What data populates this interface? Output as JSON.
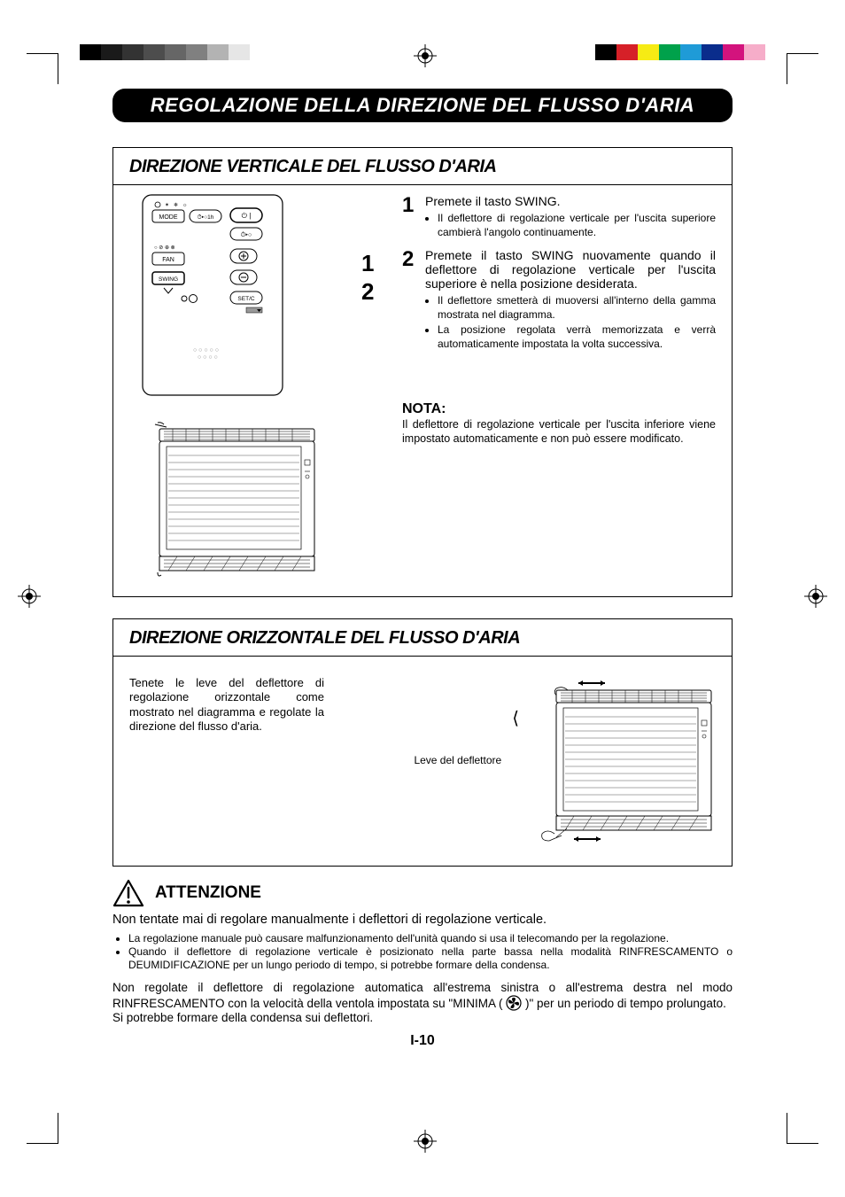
{
  "colorbars": {
    "left": [
      "#000000",
      "#1a1a1a",
      "#333333",
      "#4d4d4d",
      "#666666",
      "#808080",
      "#b3b3b3",
      "#e6e6e6",
      "#ffffff"
    ],
    "right": [
      "#000000",
      "#d62028",
      "#f6eb14",
      "#00a14b",
      "#1f9bd7",
      "#0a2d8c",
      "#d3137d",
      "#f6adc9"
    ]
  },
  "main_title": "REGOLAZIONE DELLA DIREZIONE DEL FLUSSO D'ARIA",
  "section1": {
    "title": "DIREZIONE VERTICALE DEL FLUSSO D'ARIA",
    "remote": {
      "mode_label": "MODE",
      "fan_label": "FAN",
      "swing_label": "SWING",
      "setc_label": "SET/C",
      "timer_label": "1h"
    },
    "side_numbers": [
      "1",
      "2"
    ],
    "step1": {
      "num": "1",
      "title": "Premete il tasto SWING.",
      "bullets": [
        "Il deflettore di regolazione verticale per l'uscita superiore cambierà l'angolo continuamente."
      ]
    },
    "step2": {
      "num": "2",
      "title": "Premete il tasto SWING nuovamente quando il deflettore di regolazione verticale per l'uscita superiore è nella posizione desiderata.",
      "bullets": [
        "Il deflettore smetterà di muoversi all'interno della gamma mostrata nel diagramma.",
        "La posizione regolata verrà memorizzata e verrà automaticamente impostata la volta successiva."
      ]
    },
    "nota": {
      "title": "NOTA:",
      "text": "Il deflettore di regolazione verticale per l'uscita inferiore viene impostato automaticamente e non può essere modificato."
    }
  },
  "section2": {
    "title": "DIREZIONE ORIZZONTALE DEL FLUSSO D'ARIA",
    "text": "Tenete le leve del deflettore di regolazione orizzontale come mostrato nel diagramma e regolate la direzione del flusso d'aria.",
    "lever_label": "Leve del deflettore"
  },
  "attenzione": {
    "label": "ATTENZIONE",
    "line1": "Non  tentate mai di regolare manualmente i deflettori di regolazione verticale.",
    "bullets": [
      "La regolazione manuale può causare malfunzionamento dell'unità quando si usa il telecomando per la regolazione.",
      "Quando il deflettore di regolazione verticale è posizionato nella parte bassa nella modalità RINFRESCAMENTO o DEUMIDIFICAZIONE per un lungo periodo di tempo, si potrebbe formare della condensa."
    ],
    "para2_a": "Non regolate il deflettore di regolazione automatica all'estrema sinistra o all'estrema destra nel modo RINFRESCAMENTO con la velocità della ventola impostata su \"MINIMA (",
    "para2_b": ")\" per un periodo di tempo prolungato.",
    "para3": "Si potrebbe formare della condensa sui deflettori."
  },
  "pagenum": "I-10",
  "colors": {
    "title_bg": "#000000",
    "title_fg": "#ffffff",
    "border": "#000000",
    "text": "#000000"
  }
}
